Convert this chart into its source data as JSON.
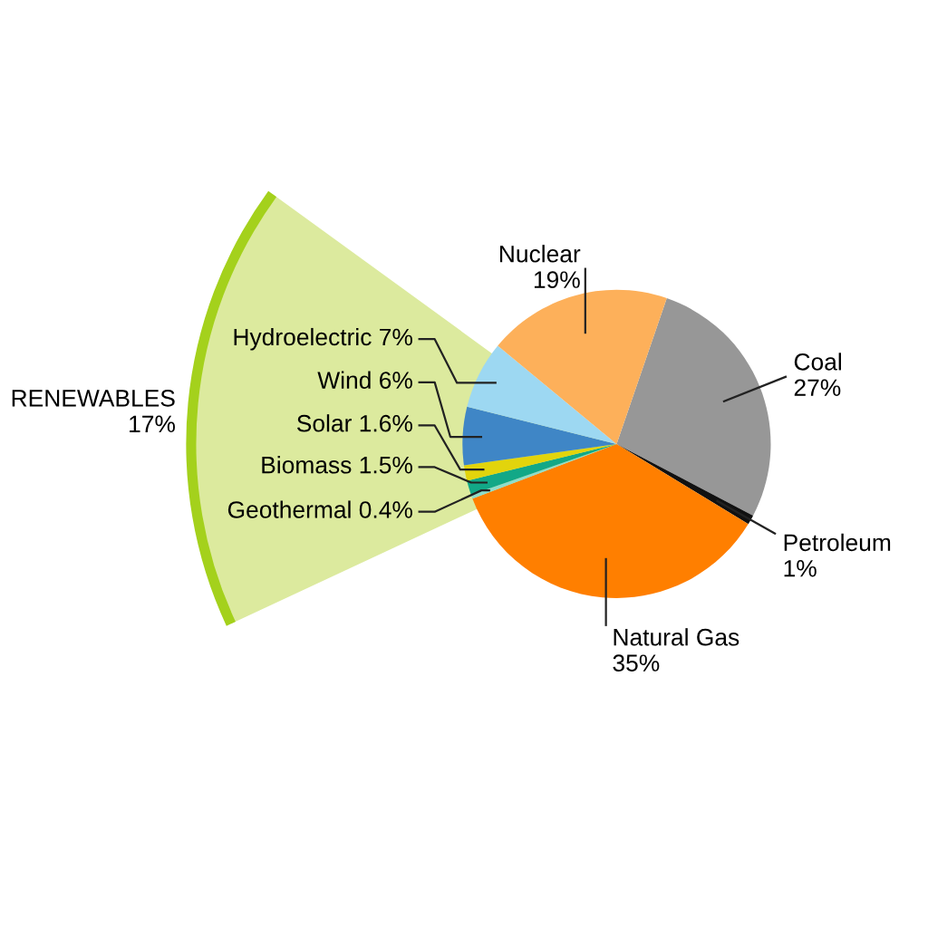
{
  "chart_data": {
    "type": "pie",
    "categories": [
      "Coal",
      "Petroleum",
      "Natural Gas",
      "Geothermal",
      "Biomass",
      "Solar",
      "Wind",
      "Hydroelectric",
      "Nuclear"
    ],
    "values": [
      27,
      1,
      35,
      0.4,
      1.5,
      1.6,
      6,
      7,
      19
    ],
    "colors": [
      "#979797",
      "#111111",
      "#ff7f00",
      "#8fdccb",
      "#12a887",
      "#e2d40c",
      "#3f86c6",
      "#9dd8f2",
      "#fdb05a"
    ],
    "value_labels": [
      "27%",
      "1%",
      "35%",
      "0.4%",
      "1.5%",
      "1.6%",
      "6%",
      "7%",
      "19%"
    ],
    "annotations": [
      "RENEWABLES\n17%"
    ]
  }
}
